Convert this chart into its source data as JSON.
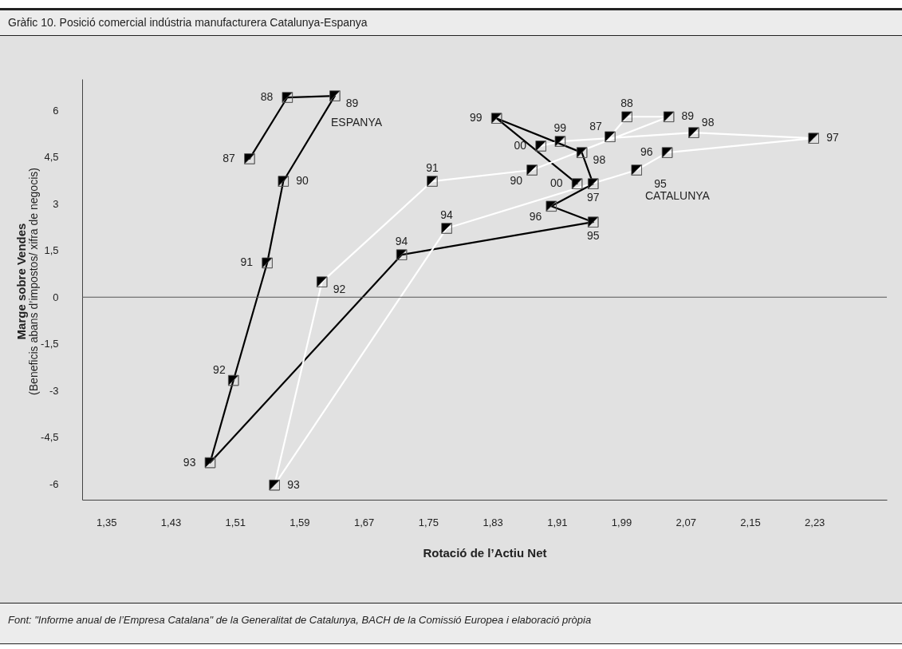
{
  "chart_data": {
    "type": "line",
    "title": "Gràfic 10. Posició comercial indústria manufacturera Catalunya-Espanya",
    "xlabel": "Rotació de l’Actiu Net",
    "ylabel": "Marge sobre Vendes\n(Beneficis abans d’impostos/ xifra de negocis)",
    "annotations": [
      {
        "text": "87",
        "x": 1.528,
        "y": 4.44
      },
      {
        "text": "88",
        "x": 1.575,
        "y": 6.41
      },
      {
        "text": "89",
        "x": 1.634,
        "y": 6.46
      },
      {
        "text": "90",
        "x": 1.57,
        "y": 3.72
      },
      {
        "text": "91",
        "x": 1.55,
        "y": 1.1
      },
      {
        "text": "92",
        "x": 1.508,
        "y": -2.67
      },
      {
        "text": "93",
        "x": 1.479,
        "y": -5.31
      },
      {
        "text": "94",
        "x": 1.717,
        "y": 1.36
      },
      {
        "text": "95",
        "x": 1.955,
        "y": 2.41
      },
      {
        "text": "96",
        "x": 1.903,
        "y": 2.92
      },
      {
        "text": "97",
        "x": 1.955,
        "y": 3.64
      },
      {
        "text": "98",
        "x": 1.941,
        "y": 4.64
      },
      {
        "text": "99",
        "x": 1.835,
        "y": 5.74
      },
      {
        "text": "00",
        "x": 1.935,
        "y": 3.64
      },
      {
        "text": "87",
        "x": 1.976,
        "y": 5.15
      },
      {
        "text": "88",
        "x": 1.997,
        "y": 5.79
      },
      {
        "text": "89",
        "x": 2.049,
        "y": 5.79
      },
      {
        "text": "90",
        "x": 1.879,
        "y": 4.08
      },
      {
        "text": "91",
        "x": 1.755,
        "y": 3.72
      },
      {
        "text": "92",
        "x": 1.618,
        "y": 0.49
      },
      {
        "text": "93",
        "x": 1.559,
        "y": -6.03
      },
      {
        "text": "94",
        "x": 1.773,
        "y": 2.21
      },
      {
        "text": "95",
        "x": 2.009,
        "y": 4.08
      },
      {
        "text": "96",
        "x": 2.047,
        "y": 4.64
      },
      {
        "text": "97",
        "x": 2.229,
        "y": 5.1
      },
      {
        "text": "98",
        "x": 2.08,
        "y": 5.28
      },
      {
        "text": "99",
        "x": 1.914,
        "y": 5.0
      },
      {
        "text": "00",
        "x": 1.89,
        "y": 4.85
      },
      "Font: \"Informe anual de l’Empresa Catalana\" de la Generalitat de Catalunya, BACH de la Comissió Europea i elaboració pròpia"
    ],
    "series": [
      {
        "name": "ESPANYA",
        "color": "#000000",
        "x": [
          1.528,
          1.575,
          1.634,
          1.57,
          1.55,
          1.508,
          1.479,
          1.717,
          1.955,
          1.903,
          1.955,
          1.941,
          1.835,
          1.935
        ],
        "values": [
          4.44,
          6.41,
          6.46,
          3.72,
          1.1,
          -2.67,
          -5.31,
          1.36,
          2.41,
          2.92,
          3.64,
          4.64,
          5.74,
          3.64
        ]
      },
      {
        "name": "CATALUNYA",
        "color": "#ffffff",
        "x": [
          1.976,
          1.997,
          2.049,
          1.879,
          1.755,
          1.618,
          1.559,
          1.773,
          2.009,
          2.047,
          2.229,
          2.08,
          1.914,
          1.89
        ],
        "values": [
          5.15,
          5.79,
          5.79,
          4.08,
          3.72,
          0.49,
          -6.03,
          2.21,
          4.08,
          4.64,
          5.1,
          5.28,
          5.0,
          4.85
        ]
      }
    ],
    "xlim": [
      1.32,
      2.32
    ],
    "ylim": [
      -6.5,
      7
    ],
    "xticks": [
      {
        "value": 1.35,
        "label": "1,35"
      },
      {
        "value": 1.43,
        "label": "1,43"
      },
      {
        "value": 1.51,
        "label": "1,51"
      },
      {
        "value": 1.59,
        "label": "1,59"
      },
      {
        "value": 1.67,
        "label": "1,67"
      },
      {
        "value": 1.75,
        "label": "1,75"
      },
      {
        "value": 1.83,
        "label": "1,83"
      },
      {
        "value": 1.91,
        "label": "1,91"
      },
      {
        "value": 1.99,
        "label": "1,99"
      },
      {
        "value": 2.07,
        "label": "2,07"
      },
      {
        "value": 2.15,
        "label": "2,15"
      },
      {
        "value": 2.23,
        "label": "2,23"
      }
    ],
    "yticks": [
      -6,
      {
        "value": -4.5,
        "label": "-4,5"
      },
      -3,
      {
        "value": -1.5,
        "label": "-1,5"
      },
      0,
      {
        "value": 1.5,
        "label": "1,5"
      },
      3,
      {
        "value": 4.5,
        "label": "4,5"
      },
      6
    ],
    "ref_lines": [
      {
        "axis": "y",
        "value": 0,
        "color": "#555555"
      }
    ],
    "legend": false,
    "marker": "square",
    "line_style": "solid"
  }
}
